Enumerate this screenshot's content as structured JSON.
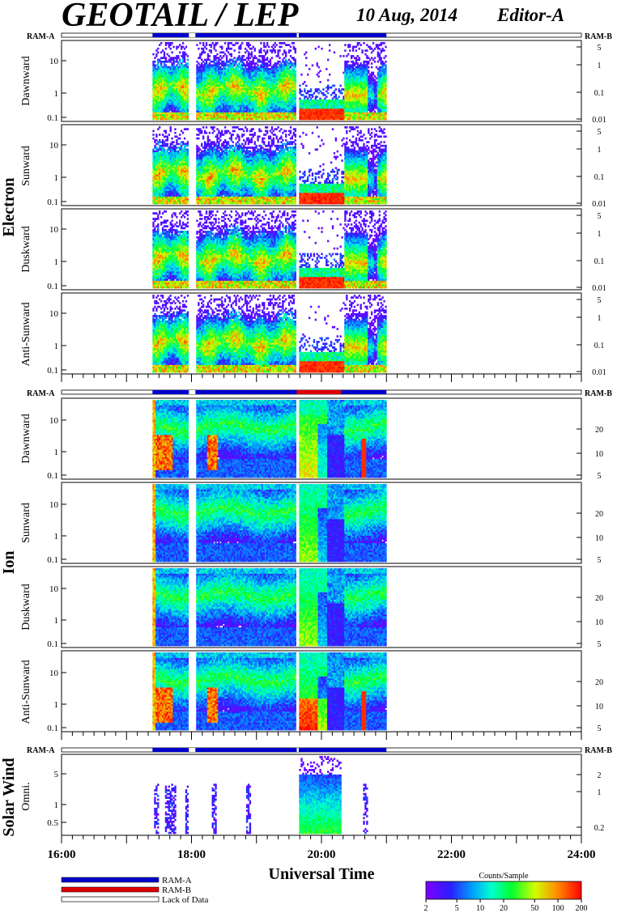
{
  "header": {
    "title": "GEOTAIL / LEP",
    "date": "10 Aug, 2014",
    "editor": "Editor-A"
  },
  "colors": {
    "ram_a": "#0000cc",
    "ram_b": "#dd0000",
    "lack": "#ffffff"
  },
  "groups": {
    "electron": "Electron",
    "ion": "Ion",
    "solar_wind": "Solar Wind"
  },
  "ram_labels": {
    "a": "RAM-A",
    "b": "RAM-B"
  },
  "panel_labels": {
    "dawnward": "Dawnward",
    "sunward": "Sunward",
    "duskward": "Duskward",
    "anti_sunward": "Anti-Sunward",
    "omni": "Omni."
  },
  "chart_data": {
    "type": "heatmap",
    "xlabel": "Universal Time",
    "x_ticks": [
      "16:00",
      "18:00",
      "20:00",
      "22:00",
      "24:00"
    ],
    "x_range_hours": [
      16,
      24
    ],
    "data_coverage_hours": [
      17.4,
      21.0
    ],
    "data_gaps_hours": [
      [
        17.96,
        18.06
      ],
      [
        19.62,
        19.65
      ]
    ],
    "ram_b_interval_hours": [
      19.62,
      20.3
    ],
    "electron_left_ticks": [
      "10",
      "1",
      "0.1"
    ],
    "electron_right_ticks": [
      "5",
      "1",
      "0.1",
      "0.01"
    ],
    "ion_left_ticks": [
      "10",
      "1",
      "0.1"
    ],
    "ion_right_ticks": [
      "20",
      "10",
      "5"
    ],
    "sw_left_ticks": [
      "5",
      "1",
      "0.5"
    ],
    "sw_right_ticks": [
      "2",
      "1",
      "0.2"
    ],
    "colorbar": {
      "title": "Counts/Sample",
      "ticks": [
        "2",
        "5",
        "10",
        "20",
        "50",
        "100",
        "200"
      ],
      "range": [
        2,
        200
      ],
      "scale": "log"
    },
    "legend": [
      {
        "label": "RAM-A",
        "color": "#0000cc"
      },
      {
        "label": "RAM-B",
        "color": "#dd0000"
      },
      {
        "label": "Lack of Data",
        "color": "#ffffff"
      }
    ]
  }
}
